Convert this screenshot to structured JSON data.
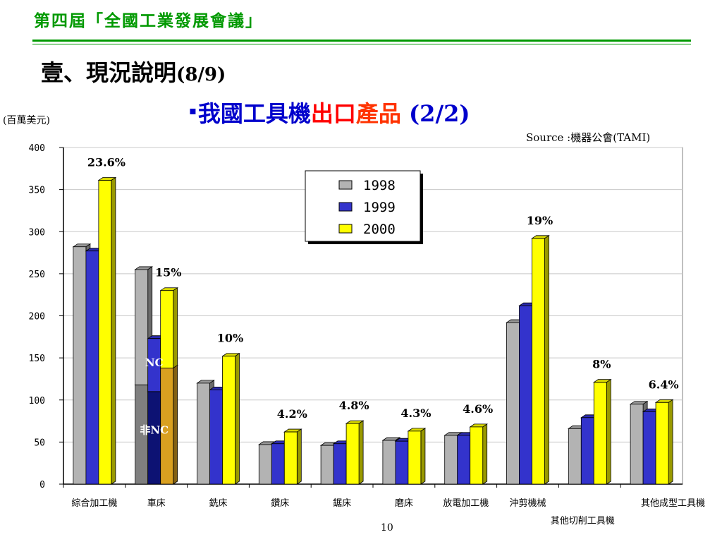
{
  "header": {
    "title": "第四屆「全國工業發展會議」"
  },
  "section": {
    "title": "壹、現況說明",
    "subtitle": "(8/9)"
  },
  "heading": {
    "bullet": "▪",
    "part_blue": "我國工具機",
    "part_red1": "出口",
    "part_red2": "產品",
    "part_tail": " (2/2)"
  },
  "y_unit": "(百萬美元)",
  "source": "Source :機器公會(TAMI)",
  "page_number": "10",
  "colors": {
    "s1998": "#b3b3b3",
    "s1999": "#3333cc",
    "s2000": "#ffff00",
    "nc1998": "#7f7f7f",
    "nc1999": "#0d1273",
    "nc2000": "#d9a020",
    "grid": "#c8c8c8",
    "heading_blue": "#0000cc",
    "heading_red": "#ff0000",
    "header_green": "#009900"
  },
  "chart_data": {
    "type": "bar",
    "ylim": [
      0,
      400
    ],
    "yticks": [
      0,
      50,
      100,
      150,
      200,
      250,
      300,
      350,
      400
    ],
    "grid": true,
    "legend_position": "top-center",
    "categories": [
      "綜合加工機",
      "車床",
      "銑床",
      "鑽床",
      "鋸床",
      "磨床",
      "放電加工機",
      "沖剪機械",
      "其他切削工具機",
      "其他成型工具機"
    ],
    "series": [
      {
        "name": "1998",
        "values": [
          282,
          255,
          120,
          47,
          46,
          52,
          58,
          192,
          66,
          95
        ]
      },
      {
        "name": "1999",
        "values": [
          277,
          173,
          112,
          48,
          48,
          51,
          58,
          212,
          79,
          86
        ]
      },
      {
        "name": "2000",
        "values": [
          361,
          230,
          152,
          62,
          72,
          63,
          68,
          292,
          121,
          97
        ]
      }
    ],
    "growth_labels": [
      "23.6%",
      "15%",
      "10%",
      "4.2%",
      "4.8%",
      "4.3%",
      "4.6%",
      "19%",
      "8%",
      "6.4%"
    ],
    "lathe_breakdown": {
      "category": "車床",
      "nc_label": "NC",
      "non_nc_label": "非NC",
      "non_nc_values": {
        "1998": 118,
        "1999": 110,
        "2000": 138
      }
    }
  }
}
